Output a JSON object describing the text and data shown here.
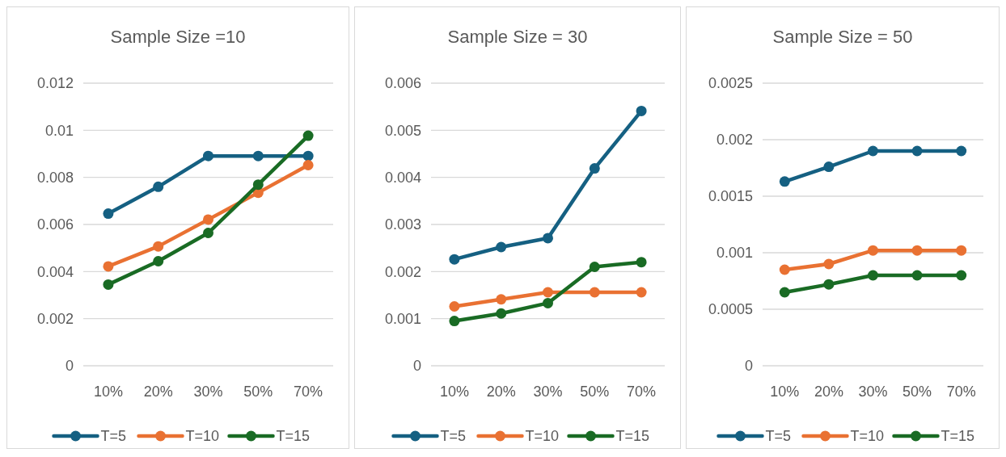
{
  "chart_data": [
    {
      "type": "line",
      "title": "Sample Size =10",
      "categories": [
        "10%",
        "20%",
        "30%",
        "50%",
        "70%"
      ],
      "ylim": [
        0,
        0.012
      ],
      "yticks": [
        0,
        0.002,
        0.004,
        0.006,
        0.008,
        0.01,
        0.012
      ],
      "grid": "y",
      "legend": "bottom",
      "marker": "circle",
      "series": [
        {
          "name": "T=5",
          "color": "#156082",
          "values": [
            0.00646,
            0.0076,
            0.00891,
            0.00891,
            0.00891
          ]
        },
        {
          "name": "T=10",
          "color": "#e97132",
          "values": [
            0.00422,
            0.00507,
            0.00621,
            0.00735,
            0.00852
          ]
        },
        {
          "name": "T=15",
          "color": "#196b24",
          "values": [
            0.00345,
            0.00444,
            0.00564,
            0.00769,
            0.00977
          ]
        }
      ]
    },
    {
      "type": "line",
      "title": "Sample Size = 30",
      "categories": [
        "10%",
        "20%",
        "30%",
        "50%",
        "70%"
      ],
      "ylim": [
        0,
        0.006
      ],
      "yticks": [
        0,
        0.001,
        0.002,
        0.003,
        0.004,
        0.005,
        0.006
      ],
      "grid": "y",
      "legend": "bottom",
      "marker": "circle",
      "series": [
        {
          "name": "T=5",
          "color": "#156082",
          "values": [
            0.00226,
            0.00252,
            0.00271,
            0.00419,
            0.00541
          ]
        },
        {
          "name": "T=10",
          "color": "#e97132",
          "values": [
            0.00126,
            0.00141,
            0.00156,
            0.00156,
            0.00156
          ]
        },
        {
          "name": "T=15",
          "color": "#196b24",
          "values": [
            0.00095,
            0.00111,
            0.00133,
            0.0021,
            0.0022
          ]
        }
      ]
    },
    {
      "type": "line",
      "title": "Sample Size = 50",
      "categories": [
        "10%",
        "20%",
        "30%",
        "50%",
        "70%"
      ],
      "ylim": [
        0,
        0.0025
      ],
      "yticks": [
        0,
        0.0005,
        0.001,
        0.0015,
        0.002,
        0.0025
      ],
      "grid": "y",
      "legend": "bottom",
      "marker": "circle",
      "series": [
        {
          "name": "T=5",
          "color": "#156082",
          "values": [
            0.00163,
            0.00176,
            0.0019,
            0.0019,
            0.0019
          ]
        },
        {
          "name": "T=10",
          "color": "#e97132",
          "values": [
            0.00085,
            0.0009,
            0.00102,
            0.00102,
            0.00102
          ]
        },
        {
          "name": "T=15",
          "color": "#196b24",
          "values": [
            0.00065,
            0.00072,
            0.0008,
            0.0008,
            0.0008
          ]
        }
      ]
    }
  ]
}
